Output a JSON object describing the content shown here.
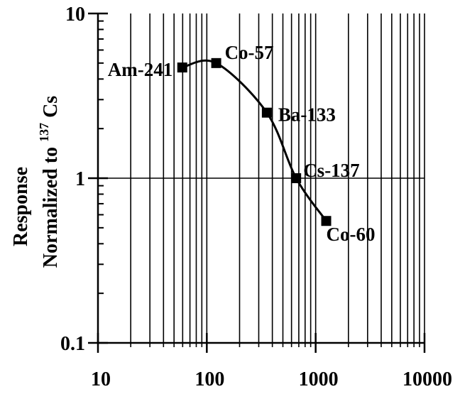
{
  "chart_data": {
    "type": "line",
    "title": "",
    "xlabel": "",
    "ylabel_line1": "Response",
    "ylabel_line2_prefix": "Normalized to",
    "ylabel_line2_superscript": "137",
    "ylabel_line2_suffix": "Cs",
    "x_scale": "log",
    "y_scale": "log",
    "xlim": [
      10,
      10000
    ],
    "ylim": [
      0.1,
      10
    ],
    "x_ticks": [
      10,
      100,
      1000,
      10000
    ],
    "x_tick_labels": [
      "10",
      "100",
      "1000",
      "10000"
    ],
    "y_ticks": [
      0.1,
      1,
      10
    ],
    "y_tick_labels": [
      "0.1",
      "1",
      "10"
    ],
    "grid": "vertical minor and major lines; horizontal line at y=1",
    "series": [
      {
        "name": "",
        "x": [
          59.5,
          122,
          356,
          662,
          1250
        ],
        "y": [
          4.7,
          5.0,
          2.5,
          1.0,
          0.55
        ],
        "point_labels": [
          "Am-241",
          "Co-57",
          "Ba-133",
          "Cs-137",
          "Co-60"
        ]
      }
    ]
  }
}
